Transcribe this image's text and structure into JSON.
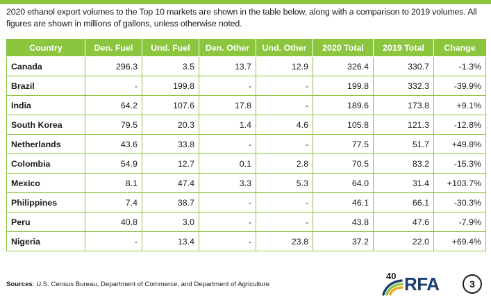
{
  "intro_text": "2020 ethanol export volumes to the Top 10 markets are shown in the table below, along with a comparison to 2019 volumes. All figures are shown in millions of gallons, unless otherwise noted.",
  "table": {
    "headers": [
      "Country",
      "Den. Fuel",
      "Und. Fuel",
      "Den. Other",
      "Und. Other",
      "2020 Total",
      "2019 Total",
      "Change"
    ],
    "rows": [
      [
        "Canada",
        "296.3",
        "3.5",
        "13.7",
        "12.9",
        "326.4",
        "330.7",
        "-1.3%"
      ],
      [
        "Brazil",
        "-",
        "199.8",
        "-",
        "-",
        "199.8",
        "332.3",
        "-39.9%"
      ],
      [
        "India",
        "64.2",
        "107.6",
        "17.8",
        "-",
        "189.6",
        "173.8",
        "+9.1%"
      ],
      [
        "South Korea",
        "79.5",
        "20.3",
        "1.4",
        "4.6",
        "105.8",
        "121.3",
        "-12.8%"
      ],
      [
        "Netherlands",
        "43.6",
        "33.8",
        "-",
        "-",
        "77.5",
        "51.7",
        "+49.8%"
      ],
      [
        "Colombia",
        "54.9",
        "12.7",
        "0.1",
        "2.8",
        "70.5",
        "83.2",
        "-15.3%"
      ],
      [
        "Mexico",
        "8.1",
        "47.4",
        "3.3",
        "5.3",
        "64.0",
        "31.4",
        "+103.7%"
      ],
      [
        "Philippines",
        "7.4",
        "38.7",
        "-",
        "-",
        "46.1",
        "66.1",
        "-30.3%"
      ],
      [
        "Peru",
        "40.8",
        "3.0",
        "-",
        "-",
        "43.8",
        "47.6",
        "-7.9%"
      ],
      [
        "Nigeria",
        "-",
        "13.4",
        "-",
        "23.8",
        "37.2",
        "22.0",
        "+69.4%"
      ]
    ]
  },
  "sources": {
    "label": "Sources",
    "text": ": U.S. Census Bureau, Department of Commerce, and Department of Agriculture"
  },
  "logo": {
    "badge": "40",
    "text": "RFA"
  },
  "page_number": "3",
  "colors": {
    "accent": "#8cc63f",
    "logo_blue": "#1c3f73"
  }
}
